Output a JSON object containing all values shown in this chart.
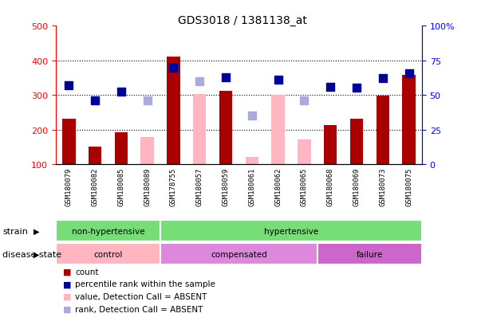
{
  "title": "GDS3018 / 1381138_at",
  "samples": [
    "GSM180079",
    "GSM180082",
    "GSM180085",
    "GSM180089",
    "GSM178755",
    "GSM180057",
    "GSM180059",
    "GSM180061",
    "GSM180062",
    "GSM180065",
    "GSM180068",
    "GSM180069",
    "GSM180073",
    "GSM180075"
  ],
  "count_values": [
    230,
    150,
    193,
    null,
    410,
    null,
    312,
    null,
    null,
    null,
    213,
    232,
    298,
    357
  ],
  "count_absent": [
    null,
    null,
    null,
    178,
    null,
    303,
    null,
    120,
    300,
    172,
    null,
    null,
    null,
    null
  ],
  "rank_values": [
    328,
    284,
    310,
    null,
    378,
    null,
    350,
    null,
    344,
    null,
    323,
    320,
    348,
    362
  ],
  "rank_absent": [
    null,
    null,
    null,
    284,
    null,
    340,
    null,
    240,
    null,
    284,
    null,
    null,
    null,
    null
  ],
  "ylim_left": [
    100,
    500
  ],
  "ylim_right": [
    0,
    100
  ],
  "left_ticks": [
    100,
    200,
    300,
    400,
    500
  ],
  "right_ticks": [
    0,
    25,
    50,
    75,
    100
  ],
  "right_tick_labels": [
    "0",
    "25",
    "50",
    "75",
    "100%"
  ],
  "bar_color_count": "#AA0000",
  "bar_color_absent": "#FFB6C1",
  "dot_color_rank": "#000099",
  "dot_color_rank_absent": "#AAAADD",
  "grid_lines": [
    200,
    300,
    400
  ],
  "legend_items": [
    {
      "label": "count",
      "color": "#AA0000",
      "marker": "s"
    },
    {
      "label": "percentile rank within the sample",
      "color": "#000099",
      "marker": "s"
    },
    {
      "label": "value, Detection Call = ABSENT",
      "color": "#FFB6C1",
      "marker": "s"
    },
    {
      "label": "rank, Detection Call = ABSENT",
      "color": "#AAAADD",
      "marker": "s"
    }
  ],
  "strain_label": "strain",
  "disease_label": "disease state",
  "bar_width": 0.5,
  "dot_size": 45,
  "strain_nh_color": "#77DD77",
  "strain_h_color": "#77DD77",
  "disease_ctrl_color": "#FFB6C1",
  "disease_comp_color": "#DD88DD",
  "disease_fail_color": "#CC66CC",
  "plot_bg": "#FFFFFF",
  "tick_label_bg": "#CCCCCC"
}
